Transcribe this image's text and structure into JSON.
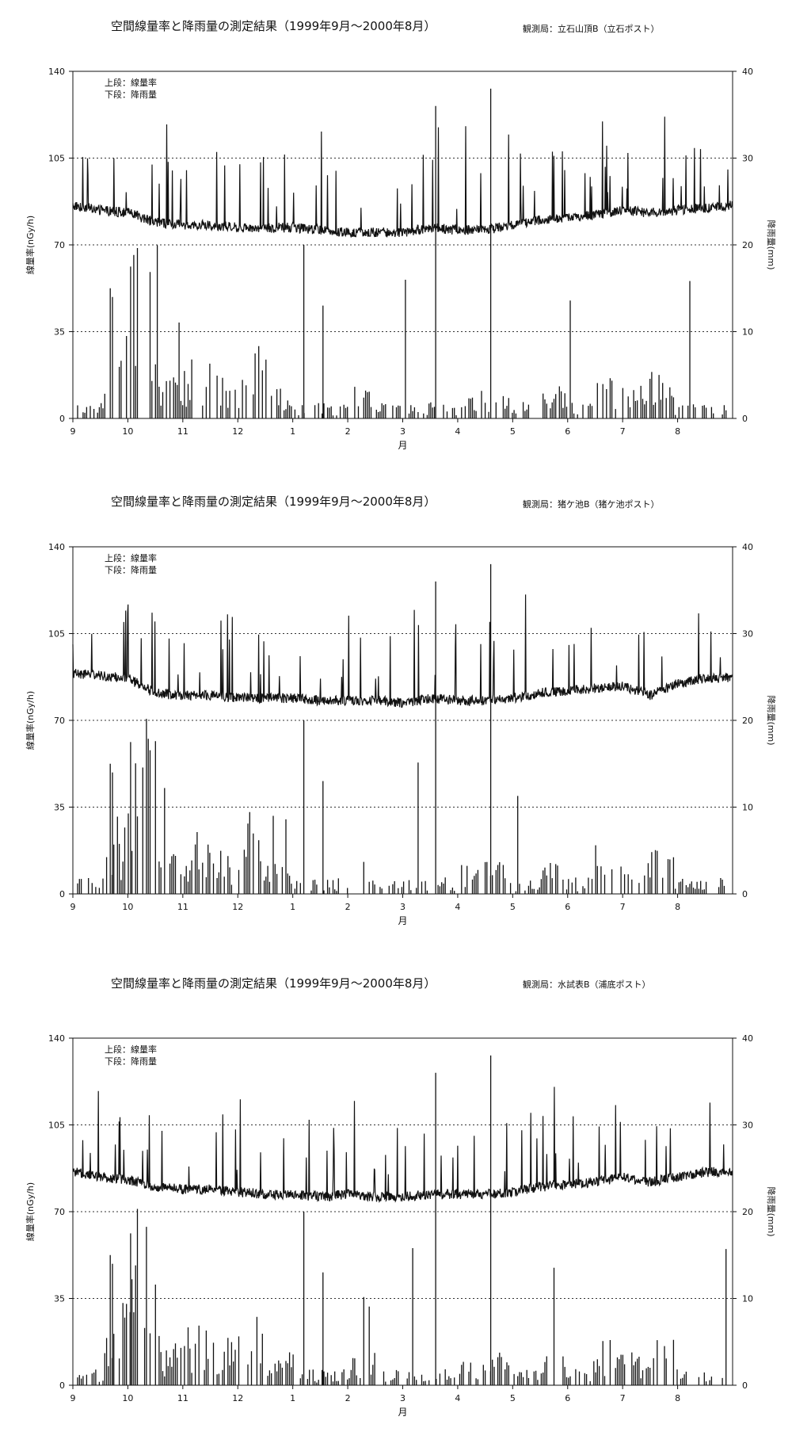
{
  "chart_data": [
    {
      "type": "line",
      "title": "空間線量率と降雨量の測定結果（1999年9月～2000年8月）",
      "station": "観測局：立石山頂B（立石ポスト）",
      "legend_lines": [
        "上段：線量率",
        "下段：降雨量"
      ],
      "legend_placement": "top-left",
      "xlabel": "月",
      "ylabel_left": "線量率(nGy/h)",
      "ylabel_right": "降雨量(mm)",
      "ylim_left": [
        0,
        140
      ],
      "ylim_right": [
        0,
        40
      ],
      "yticks_left": [
        "0",
        "35",
        "70",
        "105",
        "140"
      ],
      "yticks_right": [
        "0",
        "10",
        "20",
        "30",
        "40"
      ],
      "x_ticks": [
        "9",
        "10",
        "11",
        "12",
        "1",
        "2",
        "3",
        "4",
        "5",
        "6",
        "7",
        "8"
      ],
      "grid": "dotted at 35, 70, 105",
      "series": [
        {
          "axis": "left",
          "values": [
            86,
            84,
            83,
            79,
            78,
            78,
            77,
            77,
            77,
            76,
            75,
            75,
            75,
            77,
            76,
            76,
            78,
            80,
            81,
            82,
            84,
            83,
            84,
            85,
            86
          ]
        },
        {
          "axis": "right",
          "values": [
            1,
            5,
            11,
            3,
            4,
            3,
            5,
            2,
            1,
            1,
            2,
            1,
            1,
            1,
            2,
            2,
            1,
            2,
            1,
            3,
            2,
            3,
            1,
            1,
            0
          ]
        }
      ]
    },
    {
      "type": "line",
      "title": "空間線量率と降雨量の測定結果（1999年9月～2000年8月）",
      "station": "観測局：猪ケ池B（猪ケ池ポスト）",
      "legend_lines": [
        "上段：線量率",
        "下段：降雨量"
      ],
      "legend_placement": "top-left",
      "xlabel": "月",
      "ylabel_left": "線量率(nGy/h)",
      "ylabel_right": "降雨量(mm)",
      "ylim_left": [
        0,
        140
      ],
      "ylim_right": [
        0,
        40
      ],
      "yticks_left": [
        "0",
        "35",
        "70",
        "105",
        "140"
      ],
      "yticks_right": [
        "0",
        "10",
        "20",
        "30",
        "40"
      ],
      "x_ticks": [
        "9",
        "10",
        "11",
        "12",
        "1",
        "2",
        "3",
        "4",
        "5",
        "6",
        "7",
        "8"
      ],
      "grid": "dotted at 35, 70, 105",
      "series": [
        {
          "axis": "left",
          "values": [
            89,
            88,
            87,
            81,
            80,
            80,
            79,
            79,
            79,
            78,
            78,
            78,
            77,
            79,
            78,
            78,
            79,
            81,
            82,
            83,
            84,
            80,
            85,
            87,
            87
          ]
        },
        {
          "axis": "right",
          "values": [
            1,
            5,
            11,
            3,
            4,
            3,
            5,
            2,
            1,
            1,
            2,
            1,
            1,
            1,
            2,
            2,
            1,
            2,
            1,
            3,
            2,
            3,
            1,
            1,
            0
          ]
        }
      ]
    },
    {
      "type": "line",
      "title": "空間線量率と降雨量の測定結果（1999年9月～2000年8月）",
      "station": "観測局：水試表B（浦底ポスト）",
      "legend_lines": [
        "上段：線量率",
        "下段：降雨量"
      ],
      "legend_placement": "top-left",
      "xlabel": "月",
      "ylabel_left": "線量率(nGy/h)",
      "ylabel_right": "降雨量(mm)",
      "ylim_left": [
        0,
        140
      ],
      "ylim_right": [
        0,
        40
      ],
      "yticks_left": [
        "0",
        "35",
        "70",
        "105",
        "140"
      ],
      "yticks_right": [
        "0",
        "10",
        "20",
        "30",
        "40"
      ],
      "x_ticks": [
        "9",
        "10",
        "11",
        "12",
        "1",
        "2",
        "3",
        "4",
        "5",
        "6",
        "7",
        "8"
      ],
      "grid": "dotted at 35, 70, 105",
      "series": [
        {
          "axis": "left",
          "values": [
            86,
            84,
            83,
            80,
            79,
            79,
            78,
            77,
            77,
            76,
            77,
            76,
            76,
            77,
            77,
            77,
            78,
            80,
            81,
            82,
            84,
            82,
            84,
            86,
            86
          ]
        },
        {
          "axis": "right",
          "values": [
            1,
            5,
            11,
            3,
            4,
            3,
            5,
            2,
            1,
            1,
            2,
            1,
            1,
            1,
            2,
            2,
            1,
            2,
            1,
            3,
            2,
            3,
            1,
            1,
            0
          ]
        }
      ]
    }
  ]
}
